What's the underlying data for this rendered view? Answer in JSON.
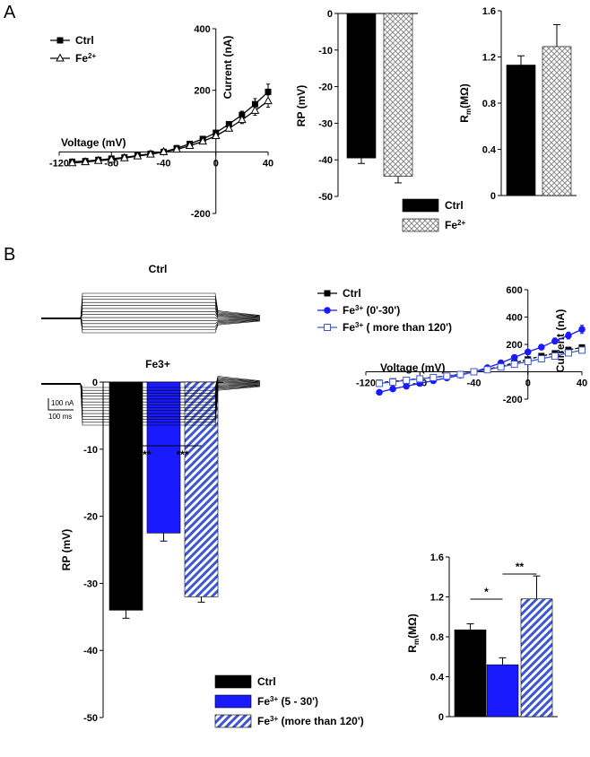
{
  "panels": {
    "a": "A",
    "b": "B"
  },
  "colors": {
    "ctrl": "#000000",
    "fe3": "#1a1aff",
    "fe3_long": "#3d56d6",
    "hatch_gray": "#8c8c8c"
  },
  "trace_titles": {
    "ctrl": "Ctrl",
    "fe3": "Fe3+"
  },
  "scale_bar": {
    "current": "100 nA",
    "time": "100 ms"
  },
  "chart_data": [
    {
      "id": "a_iv",
      "type": "line",
      "xlabel": "Voltage (mV)",
      "ylabel": "Current (nA)",
      "xlim": [
        -120,
        40
      ],
      "ylim": [
        -200,
        400
      ],
      "x_ticks": [
        -120,
        -80,
        -40,
        0,
        40
      ],
      "y_ticks": [
        -200,
        200,
        400
      ],
      "x_tick_labels": [
        "-120",
        "-80",
        "-40",
        "0",
        "40"
      ],
      "y_tick_labels": [
        "-200",
        "200",
        "400"
      ],
      "legend": [
        {
          "text": "Ctrl",
          "marker": "square-filled"
        },
        {
          "text": "Fe2+",
          "marker": "triangle-open"
        }
      ],
      "series": [
        {
          "name": "Ctrl",
          "marker": "square-filled",
          "x": [
            -110,
            -100,
            -90,
            -80,
            -70,
            -60,
            -50,
            -40,
            -30,
            -20,
            -10,
            0,
            10,
            20,
            30,
            40
          ],
          "y": [
            -32,
            -30,
            -26,
            -22,
            -18,
            -12,
            -6,
            0,
            12,
            26,
            42,
            62,
            90,
            120,
            155,
            195
          ],
          "err": [
            4,
            4,
            4,
            4,
            3,
            3,
            3,
            3,
            3,
            4,
            5,
            6,
            8,
            12,
            18,
            25
          ]
        },
        {
          "name": "Fe2+",
          "marker": "triangle-open",
          "x": [
            -110,
            -100,
            -90,
            -80,
            -70,
            -60,
            -50,
            -40,
            -30,
            -20,
            -10,
            0,
            10,
            20,
            30,
            40
          ],
          "y": [
            -36,
            -33,
            -29,
            -25,
            -20,
            -14,
            -8,
            0,
            8,
            20,
            34,
            52,
            76,
            104,
            134,
            165
          ],
          "err": [
            4,
            4,
            4,
            4,
            3,
            3,
            3,
            3,
            3,
            4,
            5,
            6,
            8,
            12,
            15,
            20
          ]
        }
      ]
    },
    {
      "id": "a_rp",
      "type": "bar",
      "ylabel": "RP (mV)",
      "ylim": [
        -50,
        0
      ],
      "y_ticks": [
        0,
        -10,
        -20,
        -30,
        -40,
        -50
      ],
      "y_tick_labels": [
        "0",
        "-10",
        "-20",
        "-30",
        "-40",
        "-50"
      ],
      "categories": [
        "Ctrl",
        "Fe2+"
      ],
      "values": [
        -39.5,
        -44.5
      ],
      "errors": [
        1.5,
        1.8
      ],
      "fills": [
        "solid-black",
        "crosshatch"
      ],
      "legend": [
        {
          "text": "Ctrl",
          "fill": "solid-black"
        },
        {
          "text": "Fe2+",
          "fill": "crosshatch"
        }
      ]
    },
    {
      "id": "a_rm",
      "type": "bar",
      "ylabel": "Rm(MΩ)",
      "ylim": [
        0,
        1.6
      ],
      "y_ticks": [
        0,
        0.4,
        0.8,
        1.2,
        1.6
      ],
      "y_tick_labels": [
        "0",
        "0.4",
        "0.8",
        "1.2",
        "1.6"
      ],
      "categories": [
        "Ctrl",
        "Fe2+"
      ],
      "values": [
        1.13,
        1.29
      ],
      "errors": [
        0.08,
        0.19
      ],
      "fills": [
        "solid-black",
        "crosshatch"
      ]
    },
    {
      "id": "b_iv",
      "type": "line",
      "xlabel": "Voltage (mV)",
      "ylabel": "Current (nA)",
      "xlim": [
        -120,
        40
      ],
      "ylim": [
        -200,
        600
      ],
      "x_ticks": [
        -120,
        -80,
        -40,
        0,
        40
      ],
      "y_ticks": [
        -200,
        200,
        400,
        600
      ],
      "x_tick_labels": [
        "-120",
        "-80",
        "-40",
        "0",
        "40"
      ],
      "y_tick_labels": [
        "-200",
        "200",
        "400",
        "600"
      ],
      "legend": [
        {
          "text": "Ctrl",
          "marker": "square-filled"
        },
        {
          "text": "Fe3+ (0'-30')",
          "marker": "circle-filled"
        },
        {
          "text": "Fe3+ ( more than 120')",
          "marker": "square-open"
        }
      ],
      "series": [
        {
          "name": "Ctrl",
          "marker": "square-filled",
          "x": [
            -110,
            -100,
            -90,
            -80,
            -70,
            -60,
            -50,
            -40,
            -30,
            -20,
            -10,
            0,
            10,
            20,
            30,
            40
          ],
          "y": [
            -80,
            -70,
            -60,
            -50,
            -40,
            -30,
            -18,
            0,
            18,
            40,
            65,
            90,
            115,
            135,
            160,
            178
          ],
          "err": [
            8,
            8,
            7,
            6,
            6,
            5,
            5,
            5,
            5,
            6,
            7,
            8,
            9,
            10,
            12,
            15
          ]
        },
        {
          "name": "Fe3+ (0'-30')",
          "marker": "circle-filled",
          "x": [
            -110,
            -100,
            -90,
            -80,
            -70,
            -60,
            -50,
            -40,
            -30,
            -20,
            -10,
            0,
            10,
            20,
            30,
            40
          ],
          "y": [
            -150,
            -125,
            -105,
            -85,
            -65,
            -45,
            -25,
            0,
            30,
            65,
            105,
            145,
            180,
            225,
            265,
            310
          ],
          "err": [
            15,
            12,
            10,
            9,
            8,
            7,
            6,
            5,
            6,
            8,
            10,
            14,
            18,
            22,
            25,
            30
          ]
        },
        {
          "name": "Fe3+ ( more than 120')",
          "marker": "square-open",
          "x": [
            -110,
            -100,
            -90,
            -80,
            -70,
            -60,
            -50,
            -40,
            -30,
            -20,
            -10,
            0,
            10,
            20,
            30,
            40
          ],
          "y": [
            -85,
            -75,
            -62,
            -52,
            -42,
            -32,
            -20,
            0,
            15,
            35,
            55,
            75,
            95,
            115,
            138,
            158
          ],
          "err": [
            8,
            8,
            7,
            6,
            6,
            5,
            5,
            5,
            5,
            6,
            7,
            8,
            9,
            10,
            12,
            14
          ]
        }
      ]
    },
    {
      "id": "b_rp",
      "type": "bar",
      "ylabel": "RP (mV)",
      "ylim": [
        -50,
        0
      ],
      "y_ticks": [
        0,
        -10,
        -20,
        -30,
        -40,
        -50
      ],
      "y_tick_labels": [
        "0",
        "-10",
        "-20",
        "-30",
        "-40",
        "-50"
      ],
      "categories": [
        "Ctrl",
        "Fe3+ (5-30')",
        "Fe3+ (more than 120')"
      ],
      "values": [
        -34,
        -22.5,
        -32
      ],
      "errors": [
        1.2,
        1.2,
        0.8
      ],
      "fills": [
        "solid-black",
        "solid-blue",
        "diagonal-blue"
      ],
      "significance": [
        {
          "from": 0,
          "to": 1,
          "label": "***"
        },
        {
          "from": 1,
          "to": 2,
          "label": "***"
        }
      ],
      "legend": [
        {
          "text": "Ctrl",
          "fill": "solid-black"
        },
        {
          "text": "Fe3+ (5 - 30')",
          "fill": "solid-blue"
        },
        {
          "text": "Fe3+ (more than 120')",
          "fill": "diagonal-blue"
        }
      ]
    },
    {
      "id": "b_rm",
      "type": "bar",
      "ylabel": "Rm(MΩ)",
      "ylim": [
        0,
        1.6
      ],
      "y_ticks": [
        0,
        0.4,
        0.8,
        1.2,
        1.6
      ],
      "y_tick_labels": [
        "0",
        "0.4",
        "0.8",
        "1.2",
        "1.6"
      ],
      "categories": [
        "Ctrl",
        "Fe3+ (5-30')",
        "Fe3+ (more than 120')"
      ],
      "values": [
        0.87,
        0.52,
        1.18
      ],
      "errors": [
        0.06,
        0.07,
        0.23
      ],
      "fills": [
        "solid-black",
        "solid-blue",
        "diagonal-blue"
      ],
      "significance": [
        {
          "from": 0,
          "to": 1,
          "label": "*"
        },
        {
          "from": 1,
          "to": 2,
          "label": "**"
        }
      ]
    }
  ]
}
